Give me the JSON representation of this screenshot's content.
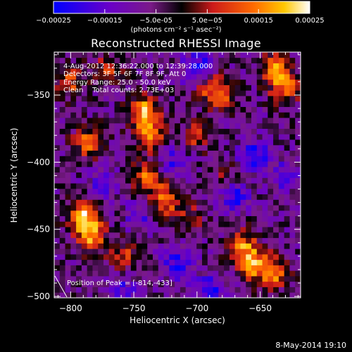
{
  "figure": {
    "title": "Reconstructed RHESSI Image",
    "colorbar_units": "(photons cm⁻² s⁻¹ asec⁻²)",
    "colorbar_ticks": [
      "-0.00025",
      "-0.00015",
      "-5.0e-05",
      "5.0e-05",
      "0.00015",
      "0.00025"
    ],
    "info_lines": [
      "4-Aug-2012 12:36:22.000 to 12:39:28.000",
      "Detectors: 3F 5F 6F 7F 8F 9F, Att 0",
      "Energy Range: 25.0 - 50.0 keV",
      "Clean    Total counts: 2.73E+03"
    ],
    "peak_text": "Position of Peak = [-814,-433]",
    "footer_date": "8-May-2014 19:10"
  },
  "chart_data": {
    "type": "heatmap",
    "title": "Reconstructed RHESSI Image",
    "xlabel": "Heliocentric X (arcsec)",
    "ylabel": "Heliocentric Y (arcsec)",
    "xlim": [
      -813,
      -618
    ],
    "ylim": [
      -501,
      -318
    ],
    "xticks": [
      -800,
      -750,
      -700,
      -650
    ],
    "yticks": [
      -500,
      -450,
      -400,
      -350
    ],
    "colorbar": {
      "range": [
        -0.00025,
        0.00025
      ],
      "ticks": [
        -0.00025,
        -0.00015,
        -5e-05,
        5e-05,
        0.00015,
        0.00025
      ],
      "units": "(photons cm⁻² s⁻¹ asec⁻²)"
    },
    "colormap": [
      "#0000ff",
      "#6a00c8",
      "#7a1a88",
      "#000000",
      "#cc1a1a",
      "#ff6a00",
      "#ffc800",
      "#ffffff"
    ],
    "grid_shape": [
      45,
      45
    ],
    "peak_position": [
      -814,
      -433
    ],
    "hotspots": [
      {
        "x": -790,
        "y": -440,
        "value": 0.00025
      },
      {
        "x": -784,
        "y": -455,
        "value": 0.00022
      },
      {
        "x": -742,
        "y": -362,
        "value": 0.00024
      },
      {
        "x": -736,
        "y": -380,
        "value": 0.00021
      },
      {
        "x": -726,
        "y": -428,
        "value": 0.00022
      },
      {
        "x": -740,
        "y": -410,
        "value": 0.00019
      },
      {
        "x": -786,
        "y": -385,
        "value": 0.00018
      },
      {
        "x": -800,
        "y": -340,
        "value": 0.00015
      },
      {
        "x": -758,
        "y": -470,
        "value": 0.00014
      },
      {
        "x": -690,
        "y": -342,
        "value": 0.00016
      },
      {
        "x": -680,
        "y": -352,
        "value": 0.00014
      },
      {
        "x": -700,
        "y": -380,
        "value": 0.00012
      },
      {
        "x": -656,
        "y": -475,
        "value": 0.00022
      },
      {
        "x": -640,
        "y": -482,
        "value": 0.00021
      },
      {
        "x": -664,
        "y": -462,
        "value": 0.00017
      },
      {
        "x": -638,
        "y": -330,
        "value": 0.00021
      },
      {
        "x": -630,
        "y": -345,
        "value": 0.00018
      },
      {
        "x": -705,
        "y": -440,
        "value": 0.0001
      },
      {
        "x": -676,
        "y": -412,
        "value": 9e-05
      },
      {
        "x": -770,
        "y": -330,
        "value": 0.00013
      }
    ],
    "negative_regions": [
      {
        "x": -700,
        "y": -330,
        "value": -0.0002
      },
      {
        "x": -655,
        "y": -395,
        "value": -0.00018
      },
      {
        "x": -670,
        "y": -425,
        "value": -0.00017
      },
      {
        "x": -715,
        "y": -475,
        "value": -0.00016
      },
      {
        "x": -690,
        "y": -495,
        "value": -0.00017
      },
      {
        "x": -720,
        "y": -400,
        "value": -0.00012
      },
      {
        "x": -745,
        "y": -440,
        "value": -0.00011
      },
      {
        "x": -630,
        "y": -410,
        "value": -0.00013
      },
      {
        "x": -775,
        "y": -415,
        "value": -0.0001
      },
      {
        "x": -760,
        "y": -495,
        "value": -0.00012
      }
    ]
  }
}
